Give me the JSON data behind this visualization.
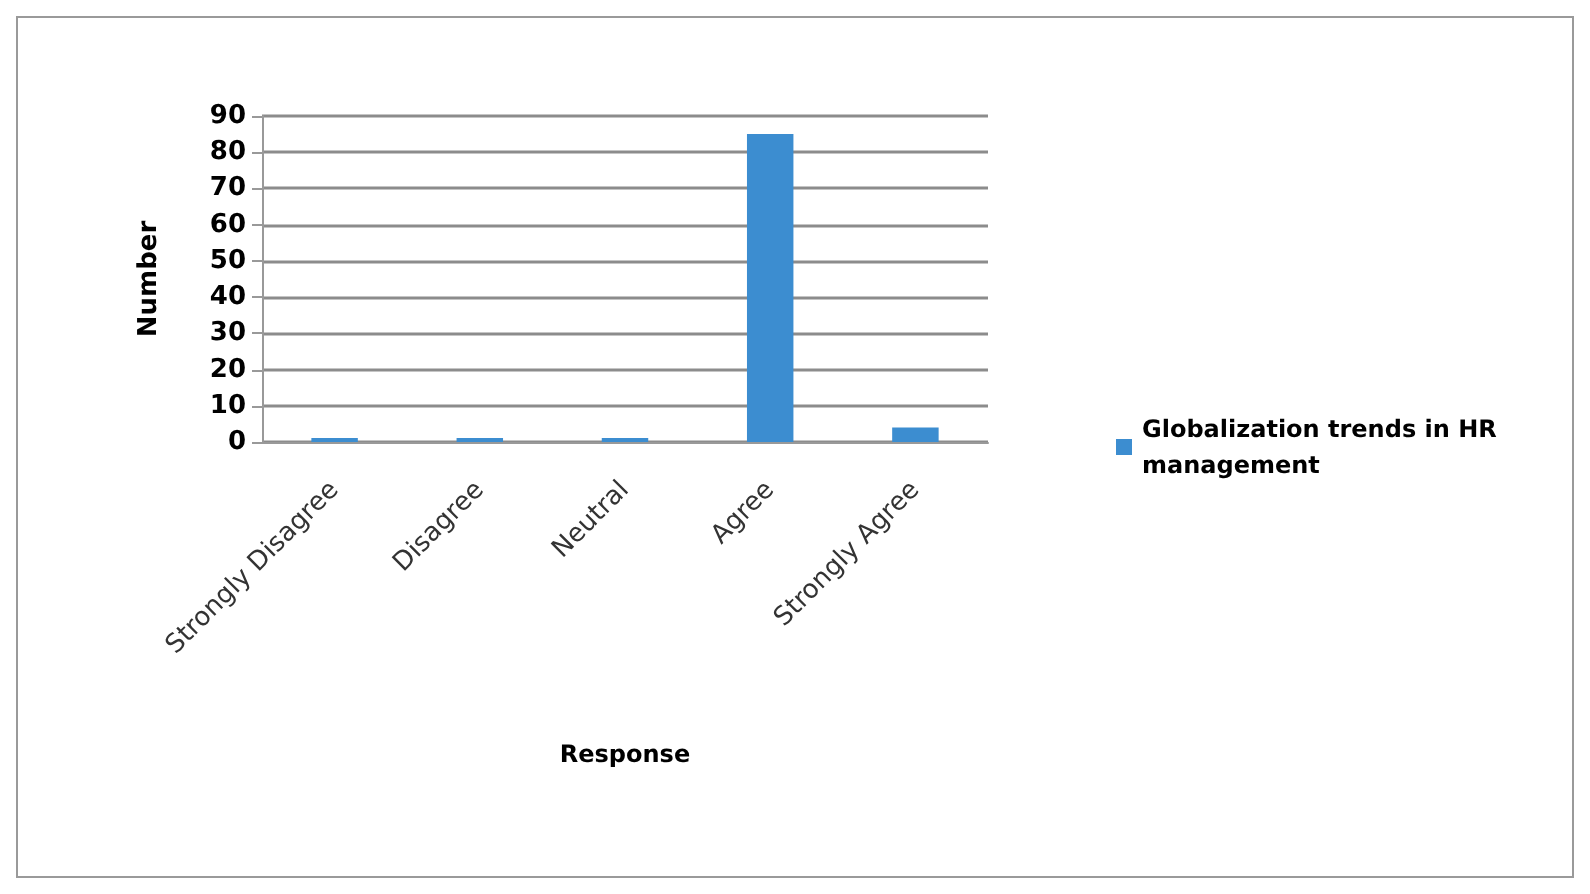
{
  "chart_data": {
    "type": "bar",
    "xlabel": "Response",
    "ylabel": "Number",
    "categories": [
      "Strongly Disagree",
      "Disagree",
      "Neutral",
      "Agree",
      "Strongly Agree"
    ],
    "series": [
      {
        "name": "Globalization trends in HR management",
        "color": "#3c8dd0",
        "values": [
          0,
          0,
          0,
          85,
          4
        ]
      }
    ],
    "ylim": [
      0,
      90
    ],
    "yticks": [
      0,
      10,
      20,
      30,
      40,
      50,
      60,
      70,
      80,
      90
    ],
    "grid": "y",
    "legend": "right"
  }
}
